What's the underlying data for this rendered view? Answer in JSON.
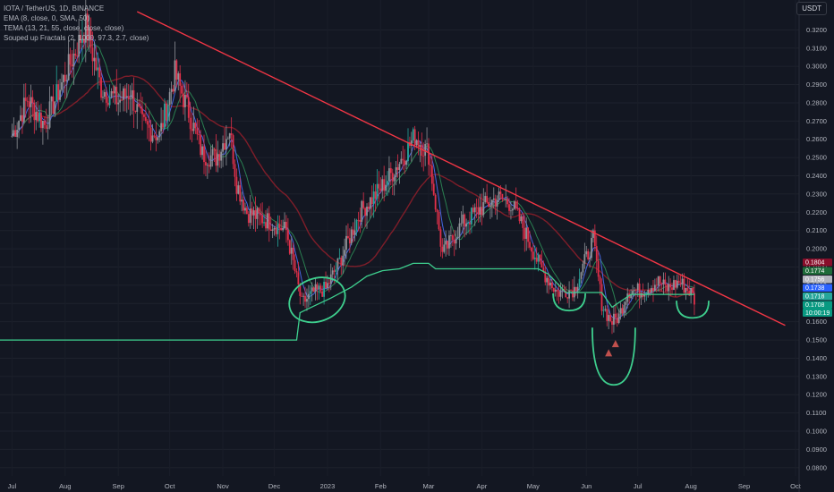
{
  "legend": {
    "symbol": "IOTA / TetherUS, 1D, BINANCE",
    "ema": "EMA (8, close, 0, SMA, 50)",
    "tema": "TEMA (13, 21, 55, close, close, close)",
    "fractals": "Souped up Fractals (2, 1000, 97.3, 2.7, close)"
  },
  "currency": "USDT",
  "colors": {
    "background": "#131722",
    "up": "#8f9298",
    "down": "#e0304a",
    "up_highlight": "#26a69a",
    "trendline": "#f23645",
    "support_line": "#3ecf8e",
    "ema": "#4c6ef5",
    "tema_short": "#2e8b57",
    "tema_long": "#8b1e2a",
    "annotation": "#3ecf8e",
    "fractal_marker": "#c0504d"
  },
  "chart_data": {
    "type": "candlestick",
    "x_labels": [
      "Jul",
      "Aug",
      "Sep",
      "Oct",
      "Nov",
      "Dec",
      "2023",
      "Feb",
      "Mar",
      "Apr",
      "May",
      "Jun",
      "Jul",
      "Aug",
      "Sep",
      "Oct"
    ],
    "y_ticks": [
      "0.3200",
      "0.3100",
      "0.3000",
      "0.2900",
      "0.2800",
      "0.2700",
      "0.2600",
      "0.2500",
      "0.2400",
      "0.2300",
      "0.2200",
      "0.2100",
      "0.2000",
      "0.1900",
      "0.1800",
      "0.1700",
      "0.1600",
      "0.1500",
      "0.1400",
      "0.1300",
      "0.1200",
      "0.1100",
      "0.1000",
      "0.0900",
      "0.0800"
    ],
    "ylim": [
      0.0755,
      0.3295
    ],
    "price_path": [
      [
        "2022-07-01",
        0.262
      ],
      [
        "2022-07-10",
        0.282
      ],
      [
        "2022-07-20",
        0.268
      ],
      [
        "2022-08-01",
        0.295
      ],
      [
        "2022-08-13",
        0.322
      ],
      [
        "2022-08-22",
        0.288
      ],
      [
        "2022-09-01",
        0.281
      ],
      [
        "2022-09-08",
        0.286
      ],
      [
        "2022-09-15",
        0.268
      ],
      [
        "2022-09-25",
        0.262
      ],
      [
        "2022-10-04",
        0.296
      ],
      [
        "2022-10-12",
        0.275
      ],
      [
        "2022-10-20",
        0.252
      ],
      [
        "2022-10-28",
        0.25
      ],
      [
        "2022-11-05",
        0.266
      ],
      [
        "2022-11-09",
        0.236
      ],
      [
        "2022-11-15",
        0.22
      ],
      [
        "2022-11-28",
        0.215
      ],
      [
        "2022-12-08",
        0.21
      ],
      [
        "2022-12-17",
        0.17
      ],
      [
        "2022-12-24",
        0.176
      ],
      [
        "2022-12-31",
        0.178
      ],
      [
        "2023-01-08",
        0.193
      ],
      [
        "2023-01-20",
        0.22
      ],
      [
        "2023-02-01",
        0.233
      ],
      [
        "2023-02-08",
        0.242
      ],
      [
        "2023-02-15",
        0.252
      ],
      [
        "2023-02-21",
        0.262
      ],
      [
        "2023-03-01",
        0.252
      ],
      [
        "2023-03-09",
        0.197
      ],
      [
        "2023-03-20",
        0.213
      ],
      [
        "2023-03-31",
        0.222
      ],
      [
        "2023-04-10",
        0.228
      ],
      [
        "2023-04-18",
        0.225
      ],
      [
        "2023-04-25",
        0.212
      ],
      [
        "2023-05-05",
        0.19
      ],
      [
        "2023-05-15",
        0.176
      ],
      [
        "2023-05-25",
        0.178
      ],
      [
        "2023-06-01",
        0.195
      ],
      [
        "2023-06-05",
        0.205
      ],
      [
        "2023-06-10",
        0.17
      ],
      [
        "2023-06-13",
        0.164
      ],
      [
        "2023-06-16",
        0.16
      ],
      [
        "2023-06-20",
        0.163
      ],
      [
        "2023-06-25",
        0.177
      ],
      [
        "2023-07-03",
        0.177
      ],
      [
        "2023-07-13",
        0.182
      ],
      [
        "2023-07-18",
        0.178
      ],
      [
        "2023-07-25",
        0.182
      ],
      [
        "2023-08-01",
        0.176
      ],
      [
        "2023-08-03",
        0.172
      ]
    ],
    "trendline": {
      "start": [
        "2022-09-12",
        0.33
      ],
      "end": [
        "2023-09-25",
        0.158
      ]
    },
    "support_steps": [
      [
        "2022-06-24",
        0.15
      ],
      [
        "2022-12-14",
        0.15
      ],
      [
        "2022-12-16",
        0.165
      ],
      [
        "2022-12-25",
        0.169
      ],
      [
        "2023-01-03",
        0.173
      ],
      [
        "2023-01-15",
        0.179
      ],
      [
        "2023-01-24",
        0.185
      ],
      [
        "2023-02-02",
        0.188
      ],
      [
        "2023-02-12",
        0.189
      ],
      [
        "2023-02-20",
        0.192
      ],
      [
        "2023-03-01",
        0.192
      ],
      [
        "2023-03-05",
        0.189
      ],
      [
        "2023-05-04",
        0.189
      ],
      [
        "2023-05-10",
        0.186
      ],
      [
        "2023-05-20",
        0.176
      ],
      [
        "2023-06-10",
        0.176
      ],
      [
        "2023-06-16",
        0.168
      ],
      [
        "2023-06-27",
        0.175
      ],
      [
        "2023-08-03",
        0.175
      ]
    ],
    "price_labels": [
      {
        "value": 0.1804,
        "label": "0.1804",
        "color": "#880e2a"
      },
      {
        "value": 0.1774,
        "label": "0.1774",
        "color": "#1e6b3a"
      },
      {
        "value": 0.1756,
        "label": "0.1756",
        "color": "#b2b5be"
      },
      {
        "value": 0.1738,
        "label": "0.1738",
        "color": "#2962ff"
      },
      {
        "value": 0.1718,
        "label": "0.1718",
        "color": "#26a69a"
      },
      {
        "value": 0.1708,
        "label": "0.1708",
        "color": "#089981"
      }
    ],
    "countdown": "10:00:19",
    "fractal_markers": [
      [
        "2023-06-18",
        0.148
      ],
      [
        "2023-06-14",
        0.143
      ]
    ],
    "annotations": [
      {
        "shape": "circle",
        "around": [
          "2022-12-26",
          0.172
        ]
      },
      {
        "shape": "arc",
        "around": [
          "2023-05-22",
          0.172
        ]
      },
      {
        "shape": "arc",
        "around": [
          "2023-06-17",
          0.145
        ]
      },
      {
        "shape": "arc",
        "around": [
          "2023-08-02",
          0.168
        ]
      }
    ]
  }
}
